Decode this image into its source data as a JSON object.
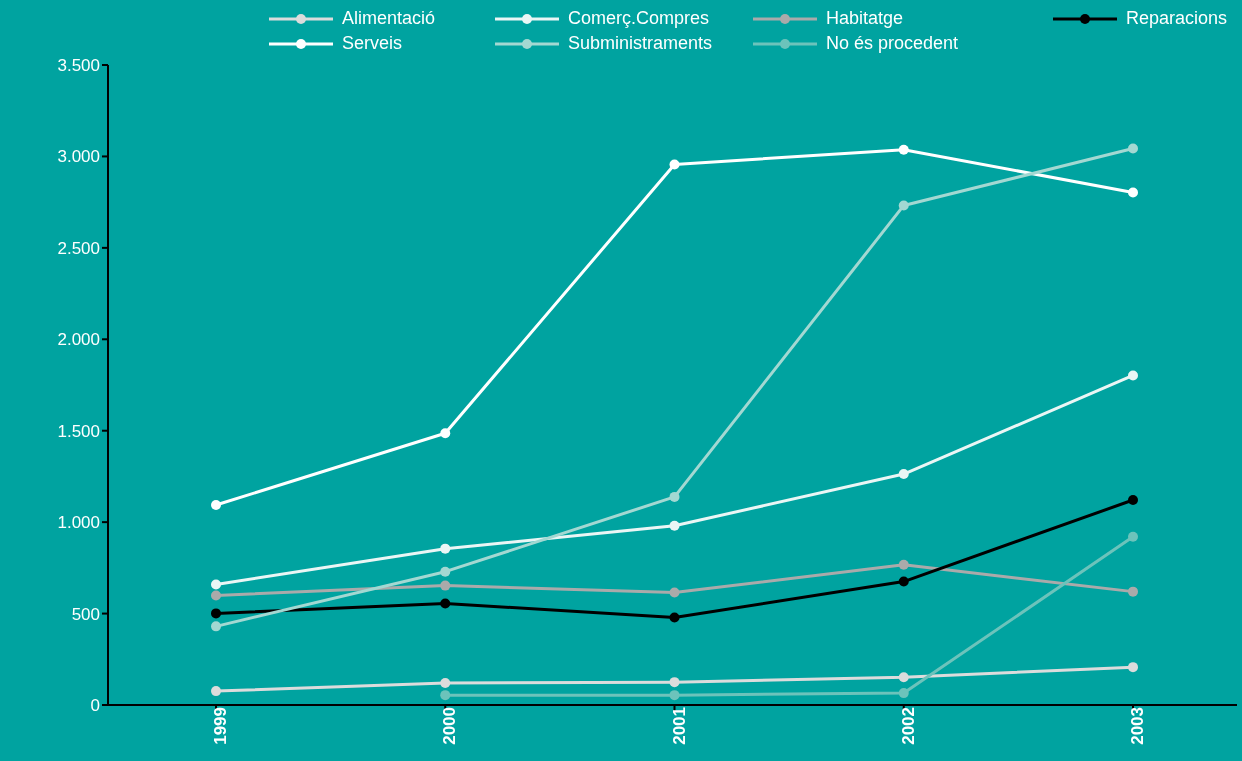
{
  "chart_data": {
    "type": "line",
    "categories": [
      "1999",
      "2000",
      "2001",
      "2002",
      "2003"
    ],
    "series": [
      {
        "name": "Alimentació",
        "color": "#dcdcdc",
        "values": [
          76,
          120,
          125,
          152,
          207
        ]
      },
      {
        "name": "Comerç.Compres",
        "color": "#eaf6f5",
        "values": [
          659,
          855,
          980,
          1263,
          1802
        ]
      },
      {
        "name": "Habitatge",
        "color": "#aaaaaa",
        "values": [
          599,
          653,
          615,
          767,
          620
        ]
      },
      {
        "name": "Reparacions",
        "color": "#000000",
        "values": [
          501,
          555,
          479,
          675,
          1121
        ]
      },
      {
        "name": "Serveis",
        "color": "#ffffff",
        "values": [
          1094,
          1486,
          2956,
          3037,
          2803
        ]
      },
      {
        "name": "Subministraments",
        "color": "#a3d8d2",
        "values": [
          430,
          729,
          1138,
          2732,
          3043
        ]
      },
      {
        "name": "No és procedent",
        "color": "#6cc3bb",
        "values": [
          null,
          54,
          54,
          65,
          920
        ]
      }
    ],
    "ylim": [
      0,
      3500
    ],
    "yticks": [
      {
        "value": 0,
        "label": "0"
      },
      {
        "value": 500,
        "label": "500"
      },
      {
        "value": 1000,
        "label": "1.000"
      },
      {
        "value": 1500,
        "label": "1.500"
      },
      {
        "value": 2000,
        "label": "2.000"
      },
      {
        "value": 2500,
        "label": "2.500"
      },
      {
        "value": 3000,
        "label": "3.000"
      },
      {
        "value": 3500,
        "label": "3.500"
      }
    ],
    "grid": false,
    "legend": "top",
    "marker": "circle",
    "line_style": "solid"
  }
}
